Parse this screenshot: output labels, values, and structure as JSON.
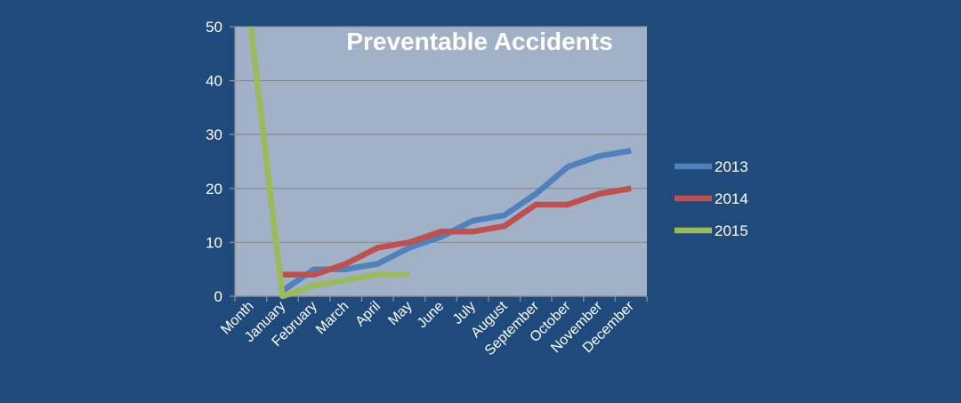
{
  "colors": {
    "page_background": "#1f4a7c",
    "plot_background": "#a0b1c8",
    "gridline": "#8e8e8e",
    "text": "#ffffff"
  },
  "chart_data": {
    "type": "line",
    "title": "Preventable Accidents",
    "categories": [
      "Month",
      "January",
      "February",
      "March",
      "April",
      "May",
      "June",
      "July",
      "August",
      "September",
      "October",
      "November",
      "December"
    ],
    "ylim": [
      0,
      50
    ],
    "yticks": [
      0,
      10,
      20,
      30,
      40,
      50
    ],
    "grid": true,
    "legend_position": "right",
    "series": [
      {
        "name": "2013",
        "color": "#4f81bd",
        "values": [
          null,
          1,
          5,
          5,
          6,
          9,
          11,
          14,
          15,
          19,
          24,
          26,
          27
        ]
      },
      {
        "name": "2014",
        "color": "#c0504d",
        "values": [
          null,
          4,
          4,
          6,
          9,
          10,
          12,
          12,
          13,
          17,
          17,
          19,
          20
        ]
      },
      {
        "name": "2015",
        "color": "#9bbb59",
        "values": [
          50,
          0,
          2,
          3,
          4,
          4,
          null,
          null,
          null,
          null,
          null,
          null,
          null
        ]
      }
    ]
  }
}
